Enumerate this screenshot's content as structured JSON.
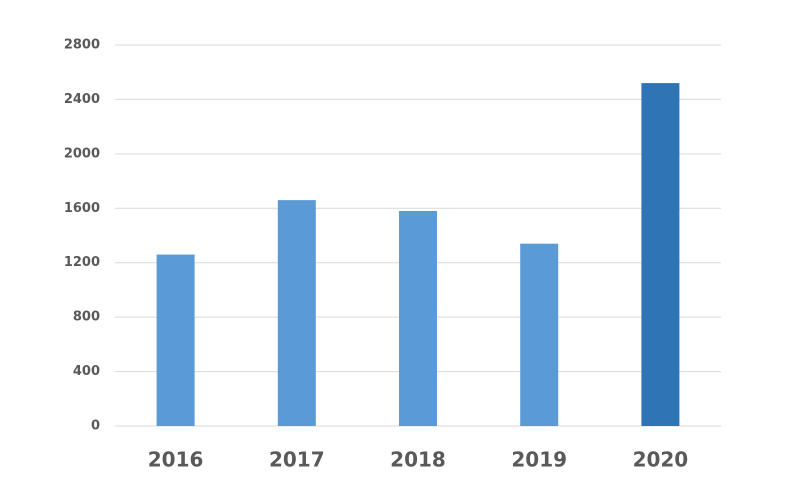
{
  "chart_data": {
    "type": "bar",
    "categories": [
      "2016",
      "2017",
      "2018",
      "2019",
      "2020"
    ],
    "values": [
      1260,
      1660,
      1580,
      1340,
      2520
    ],
    "colors": [
      "#5b9bd5",
      "#5b9bd5",
      "#5b9bd5",
      "#5b9bd5",
      "#2e75b6"
    ],
    "ylim": [
      0,
      2800
    ],
    "yticks": [
      0,
      400,
      800,
      1200,
      1600,
      2000,
      2400,
      2800
    ],
    "grid": true
  }
}
